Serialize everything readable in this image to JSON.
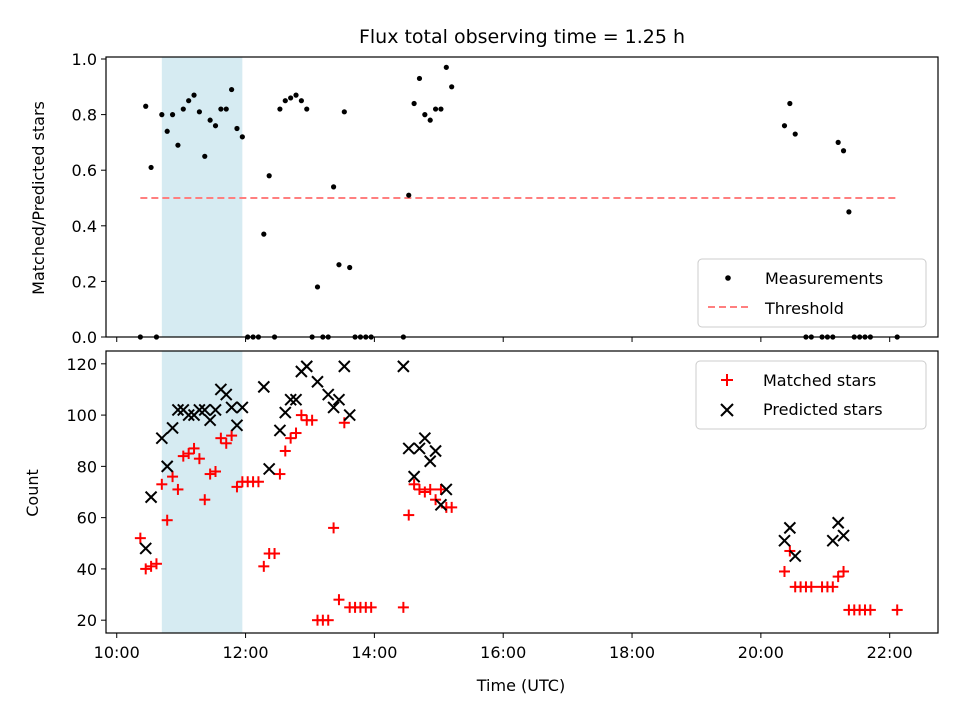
{
  "chart_data": {
    "title": "Flux total observing time = 1.25 h",
    "highlight_span": [
      "10:42",
      "11:57"
    ],
    "colors": {
      "measurements": "#000000",
      "threshold": "#ff7f7f",
      "matched": "#ff0000",
      "predicted": "#000000",
      "highlight": "#add8e6"
    },
    "panels": [
      {
        "type": "scatter",
        "ylabel": "Matched/Predicted stars",
        "ylim": [
          0,
          1.0
        ],
        "yticks": [
          0.0,
          0.2,
          0.4,
          0.6,
          0.8,
          1.0
        ],
        "ytick_labels": [
          "0.0",
          "0.2",
          "0.4",
          "0.6",
          "0.8",
          "1.0"
        ],
        "legend_position": "lower-right",
        "series": [
          {
            "name": "Measurements",
            "marker": "dot",
            "points": [
              [
                "10:22",
                0.0
              ],
              [
                "10:27",
                0.83
              ],
              [
                "10:32",
                0.61
              ],
              [
                "10:37",
                0.0
              ],
              [
                "10:42",
                0.8
              ],
              [
                "10:47",
                0.74
              ],
              [
                "10:52",
                0.8
              ],
              [
                "10:57",
                0.69
              ],
              [
                "11:02",
                0.82
              ],
              [
                "11:07",
                0.85
              ],
              [
                "11:12",
                0.87
              ],
              [
                "11:17",
                0.81
              ],
              [
                "11:22",
                0.65
              ],
              [
                "11:27",
                0.78
              ],
              [
                "11:32",
                0.76
              ],
              [
                "11:37",
                0.82
              ],
              [
                "11:42",
                0.82
              ],
              [
                "11:47",
                0.89
              ],
              [
                "11:52",
                0.75
              ],
              [
                "11:57",
                0.72
              ],
              [
                "12:02",
                0.0
              ],
              [
                "12:07",
                0.0
              ],
              [
                "12:12",
                0.0
              ],
              [
                "12:17",
                0.37
              ],
              [
                "12:22",
                0.58
              ],
              [
                "12:27",
                0.0
              ],
              [
                "12:32",
                0.82
              ],
              [
                "12:37",
                0.85
              ],
              [
                "12:42",
                0.86
              ],
              [
                "12:47",
                0.87
              ],
              [
                "12:52",
                0.85
              ],
              [
                "12:57",
                0.82
              ],
              [
                "13:02",
                0.0
              ],
              [
                "13:07",
                0.18
              ],
              [
                "13:12",
                0.0
              ],
              [
                "13:17",
                0.0
              ],
              [
                "13:22",
                0.54
              ],
              [
                "13:27",
                0.26
              ],
              [
                "13:32",
                0.81
              ],
              [
                "13:37",
                0.25
              ],
              [
                "13:42",
                0.0
              ],
              [
                "13:47",
                0.0
              ],
              [
                "13:52",
                0.0
              ],
              [
                "13:57",
                0.0
              ],
              [
                "14:27",
                0.0
              ],
              [
                "14:32",
                0.51
              ],
              [
                "14:37",
                0.84
              ],
              [
                "14:42",
                0.93
              ],
              [
                "14:47",
                0.8
              ],
              [
                "14:52",
                0.78
              ],
              [
                "14:57",
                0.82
              ],
              [
                "15:02",
                0.82
              ],
              [
                "15:07",
                0.97
              ],
              [
                "15:12",
                0.9
              ],
              [
                "20:22",
                0.76
              ],
              [
                "20:27",
                0.84
              ],
              [
                "20:32",
                0.73
              ],
              [
                "20:42",
                0.0
              ],
              [
                "20:47",
                0.0
              ],
              [
                "20:57",
                0.0
              ],
              [
                "21:02",
                0.0
              ],
              [
                "21:07",
                0.0
              ],
              [
                "21:12",
                0.7
              ],
              [
                "21:17",
                0.67
              ],
              [
                "21:22",
                0.45
              ],
              [
                "21:27",
                0.0
              ],
              [
                "21:32",
                0.0
              ],
              [
                "21:37",
                0.0
              ],
              [
                "21:42",
                0.0
              ],
              [
                "22:07",
                0.0
              ]
            ]
          },
          {
            "name": "Threshold",
            "marker": "dashed-line",
            "points": [
              [
                "10:22",
                0.5
              ],
              [
                "22:07",
                0.5
              ]
            ]
          }
        ]
      },
      {
        "type": "scatter",
        "ylabel": "Count",
        "xlabel": "Time (UTC)",
        "ylim": [
          15,
          125
        ],
        "yticks": [
          20,
          40,
          60,
          80,
          100,
          120
        ],
        "ytick_labels": [
          "20",
          "40",
          "60",
          "80",
          "100",
          "120"
        ],
        "xlim": [
          "09:50",
          "22:45"
        ],
        "xticks": [
          "10:00",
          "12:00",
          "14:00",
          "16:00",
          "18:00",
          "20:00",
          "22:00"
        ],
        "legend_position": "upper-right",
        "series": [
          {
            "name": "Matched stars",
            "marker": "plus",
            "points": [
              [
                "10:22",
                52
              ],
              [
                "10:27",
                40
              ],
              [
                "10:32",
                41
              ],
              [
                "10:37",
                42
              ],
              [
                "10:42",
                73
              ],
              [
                "10:47",
                59
              ],
              [
                "10:52",
                76
              ],
              [
                "10:57",
                71
              ],
              [
                "11:02",
                84
              ],
              [
                "11:07",
                85
              ],
              [
                "11:12",
                87
              ],
              [
                "11:17",
                83
              ],
              [
                "11:22",
                67
              ],
              [
                "11:27",
                77
              ],
              [
                "11:32",
                78
              ],
              [
                "11:37",
                91
              ],
              [
                "11:42",
                89
              ],
              [
                "11:47",
                92
              ],
              [
                "11:52",
                72
              ],
              [
                "11:57",
                74
              ],
              [
                "12:02",
                74
              ],
              [
                "12:07",
                74
              ],
              [
                "12:12",
                74
              ],
              [
                "12:17",
                41
              ],
              [
                "12:22",
                46
              ],
              [
                "12:27",
                46
              ],
              [
                "12:32",
                77
              ],
              [
                "12:37",
                86
              ],
              [
                "12:42",
                91
              ],
              [
                "12:47",
                93
              ],
              [
                "12:52",
                100
              ],
              [
                "12:57",
                98
              ],
              [
                "13:02",
                98
              ],
              [
                "13:07",
                20
              ],
              [
                "13:12",
                20
              ],
              [
                "13:17",
                20
              ],
              [
                "13:22",
                56
              ],
              [
                "13:27",
                28
              ],
              [
                "13:32",
                97
              ],
              [
                "13:37",
                25
              ],
              [
                "13:42",
                25
              ],
              [
                "13:47",
                25
              ],
              [
                "13:52",
                25
              ],
              [
                "13:57",
                25
              ],
              [
                "14:27",
                25
              ],
              [
                "14:32",
                61
              ],
              [
                "14:37",
                73
              ],
              [
                "14:42",
                71
              ],
              [
                "14:47",
                70
              ],
              [
                "14:52",
                71
              ],
              [
                "14:57",
                67
              ],
              [
                "15:02",
                71
              ],
              [
                "15:07",
                64
              ],
              [
                "15:12",
                64
              ],
              [
                "20:22",
                39
              ],
              [
                "20:27",
                47
              ],
              [
                "20:32",
                33
              ],
              [
                "20:37",
                33
              ],
              [
                "20:42",
                33
              ],
              [
                "20:47",
                33
              ],
              [
                "20:57",
                33
              ],
              [
                "21:02",
                33
              ],
              [
                "21:07",
                33
              ],
              [
                "21:12",
                37
              ],
              [
                "21:17",
                39
              ],
              [
                "21:22",
                24
              ],
              [
                "21:27",
                24
              ],
              [
                "21:32",
                24
              ],
              [
                "21:37",
                24
              ],
              [
                "21:42",
                24
              ],
              [
                "22:07",
                24
              ]
            ]
          },
          {
            "name": "Predicted stars",
            "marker": "x",
            "points": [
              [
                "10:27",
                48
              ],
              [
                "10:32",
                68
              ],
              [
                "10:42",
                91
              ],
              [
                "10:47",
                80
              ],
              [
                "10:52",
                95
              ],
              [
                "10:57",
                102
              ],
              [
                "11:02",
                102
              ],
              [
                "11:07",
                100
              ],
              [
                "11:12",
                100
              ],
              [
                "11:17",
                102
              ],
              [
                "11:22",
                102
              ],
              [
                "11:27",
                98
              ],
              [
                "11:32",
                102
              ],
              [
                "11:37",
                110
              ],
              [
                "11:42",
                108
              ],
              [
                "11:47",
                103
              ],
              [
                "11:52",
                96
              ],
              [
                "11:57",
                103
              ],
              [
                "12:17",
                111
              ],
              [
                "12:22",
                79
              ],
              [
                "12:32",
                94
              ],
              [
                "12:37",
                101
              ],
              [
                "12:42",
                106
              ],
              [
                "12:47",
                106
              ],
              [
                "12:52",
                117
              ],
              [
                "12:57",
                119
              ],
              [
                "13:07",
                113
              ],
              [
                "13:17",
                108
              ],
              [
                "13:22",
                103
              ],
              [
                "13:27",
                106
              ],
              [
                "13:32",
                119
              ],
              [
                "13:37",
                100
              ],
              [
                "14:27",
                119
              ],
              [
                "14:32",
                87
              ],
              [
                "14:37",
                76
              ],
              [
                "14:42",
                87
              ],
              [
                "14:47",
                91
              ],
              [
                "14:52",
                82
              ],
              [
                "14:57",
                86
              ],
              [
                "15:02",
                65
              ],
              [
                "15:07",
                71
              ],
              [
                "20:22",
                51
              ],
              [
                "20:27",
                56
              ],
              [
                "20:32",
                45
              ],
              [
                "21:07",
                51
              ],
              [
                "21:12",
                58
              ],
              [
                "21:17",
                53
              ]
            ]
          }
        ]
      }
    ]
  }
}
